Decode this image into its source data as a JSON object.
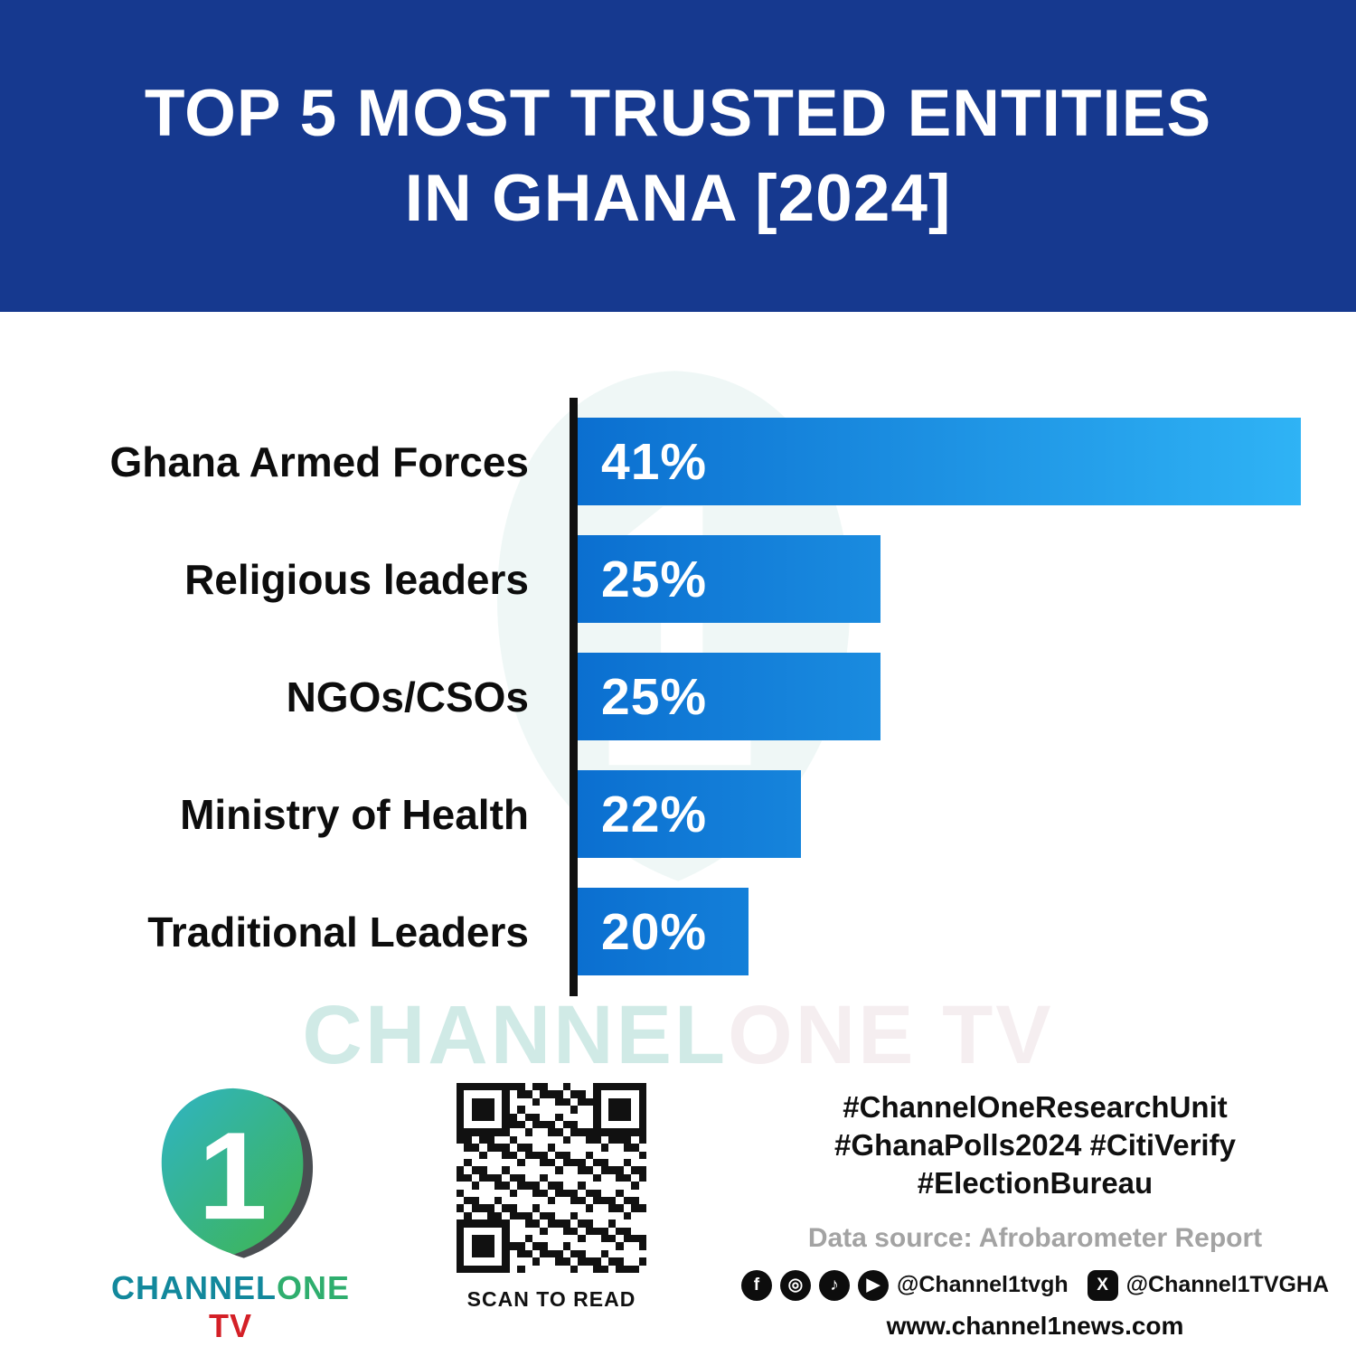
{
  "header": {
    "title_line1": "TOP 5 MOST TRUSTED ENTITIES",
    "title_line2": "IN GHANA [2024]"
  },
  "chart_data": {
    "type": "bar",
    "orientation": "horizontal",
    "title": "Top 5 Most Trusted Entities in Ghana [2024]",
    "categories": [
      "Ghana Armed Forces",
      "Religious leaders",
      "NGOs/CSOs",
      "Ministry of Health",
      "Traditional Leaders"
    ],
    "values": [
      41,
      25,
      25,
      22,
      20
    ],
    "value_labels": [
      "41%",
      "25%",
      "25%",
      "22%",
      "20%"
    ],
    "unit": "%",
    "xlim": [
      13.5,
      41
    ],
    "grid": false,
    "legend": false,
    "bar_color_start": "#0b6fd0",
    "bar_color_end": "#2fb3f5",
    "axis_color": "#101010"
  },
  "watermark": {
    "part1": "CHANNEL",
    "part2": "ONE TV"
  },
  "footer": {
    "logo": {
      "part1": "CHANNEL",
      "part2": "ONE",
      "part3": " TV",
      "numeral": "1"
    },
    "qr_caption": "SCAN TO READ",
    "hashtags": [
      "#ChannelOneResearchUnit",
      "#GhanaPolls2024 #CitiVerify",
      "#ElectionBureau"
    ],
    "data_source": "Data source: Afrobarometer Report",
    "social": {
      "facebook_glyph": "f",
      "instagram_glyph": "◎",
      "tiktok_glyph": "♪",
      "youtube_glyph": "▶",
      "x_glyph": "X",
      "handle1": "@Channel1tvgh",
      "handle2": "@Channel1TVGHA"
    },
    "website": "www.channel1news.com"
  }
}
